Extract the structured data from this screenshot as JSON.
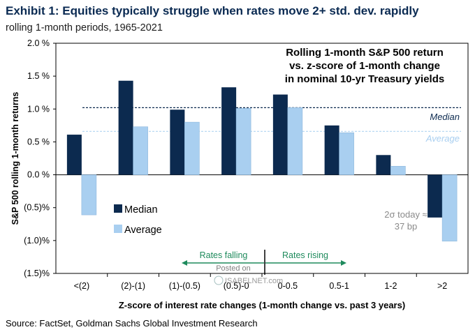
{
  "title": "Exhibit 1: Equities typically struggle when rates move 2+ std. dev. rapidly",
  "subtitle": "rolling 1-month periods, 1965-2021",
  "source": "Source: FactSet, Goldman Sachs Global Investment Research",
  "colors": {
    "median": "#0c2a4f",
    "average": "#a9cff0",
    "average_line": "#b9d9f3",
    "arrow": "#1e8a5c",
    "title": "#0a2a52"
  },
  "chart_data": {
    "type": "bar",
    "title": "Rolling 1-month S&P 500 return vs. z-score of 1-month change in nominal 10-yr Treasury yields",
    "title_lines": [
      "Rolling 1-month S&P 500 return",
      "vs. z-score of 1-month change",
      "in nominal 10-yr Treasury yields"
    ],
    "xlabel": "Z-score of interest rate changes (1-month change vs. past 3 years)",
    "ylabel": "S&P 500 rolling 1-month returns",
    "ylim": [
      -1.5,
      2.0
    ],
    "yticks": [
      2.0,
      1.5,
      1.0,
      0.5,
      0.0,
      -0.5,
      -1.0,
      -1.5
    ],
    "ytick_labels": [
      "2.0 %",
      "1.5 %",
      "1.0 %",
      "0.5 %",
      "0.0 %",
      "(0.5)%",
      "(1.0)%",
      "(1.5)%"
    ],
    "categories": [
      "<(2)",
      "(2)-(1)",
      "(1)-(0.5)",
      "(0.5)-0",
      "0-0.5",
      "0.5-1",
      "1-2",
      ">2"
    ],
    "series": [
      {
        "name": "Median",
        "values": [
          0.61,
          1.43,
          0.99,
          1.33,
          1.22,
          0.75,
          0.3,
          -0.65
        ]
      },
      {
        "name": "Average",
        "values": [
          -0.61,
          0.73,
          0.8,
          1.01,
          1.02,
          0.64,
          0.13,
          -1.01
        ]
      }
    ],
    "reference_lines": [
      {
        "label": "Median",
        "value": 1.02,
        "style": "dashed"
      },
      {
        "label": "Average",
        "value": 0.66,
        "style": "dashed"
      }
    ],
    "legend": [
      "Median",
      "Average"
    ],
    "legend_position": "lower-left",
    "annotations": {
      "sigma_line1": "2σ today ≈",
      "sigma_line2": "37 bp",
      "rates_falling": "Rates falling",
      "rates_rising": "Rates rising",
      "watermark_line1": "Posted on",
      "watermark_line2": "ISABELNET.com"
    }
  }
}
